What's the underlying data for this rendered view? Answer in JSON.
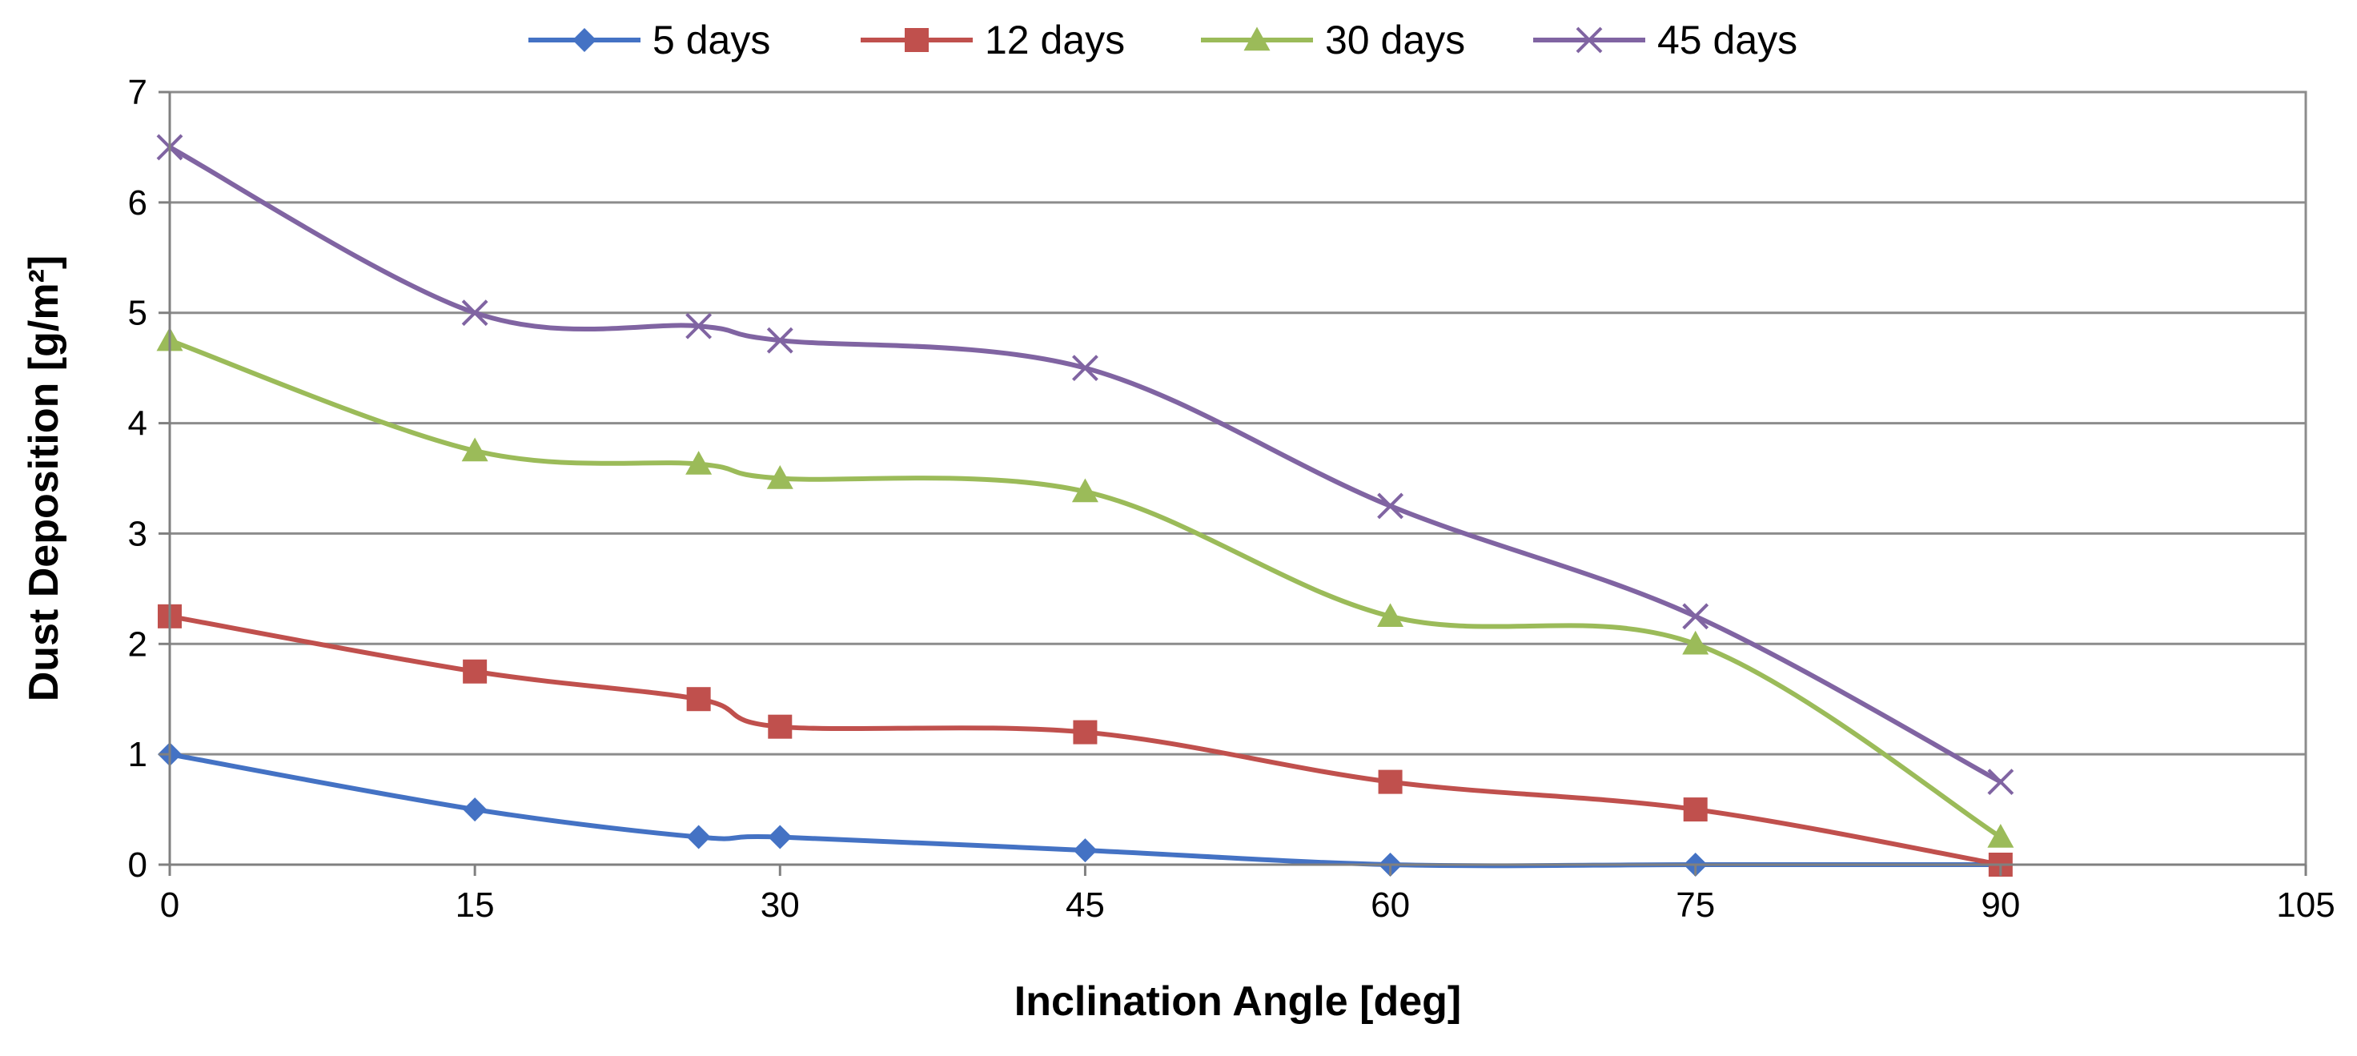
{
  "chart_data": {
    "type": "line",
    "title": "",
    "xlabel": "Inclination Angle [deg]",
    "ylabel": "Dust Deposition [g/m²]",
    "xlim": [
      0,
      105
    ],
    "ylim": [
      0,
      7
    ],
    "xticks": [
      0,
      15,
      30,
      45,
      60,
      75,
      90,
      105
    ],
    "yticks": [
      0,
      1,
      2,
      3,
      4,
      5,
      6,
      7
    ],
    "grid": "horizontal",
    "legend_position": "top",
    "x": [
      0,
      15,
      26,
      30,
      45,
      60,
      75,
      90
    ],
    "series": [
      {
        "name": "5 days",
        "color": "#4472C4",
        "marker": "diamond",
        "values": [
          1.0,
          0.5,
          0.25,
          0.25,
          0.13,
          0.0,
          0.0,
          0.0
        ]
      },
      {
        "name": "12 days",
        "color": "#C0504D",
        "marker": "square",
        "values": [
          2.25,
          1.75,
          1.5,
          1.25,
          1.2,
          0.75,
          0.5,
          0.0
        ]
      },
      {
        "name": "30 days",
        "color": "#9BBB59",
        "marker": "triangle",
        "values": [
          4.75,
          3.75,
          3.63,
          3.5,
          3.38,
          2.25,
          2.0,
          0.25
        ]
      },
      {
        "name": "45 days",
        "color": "#8064A2",
        "marker": "x",
        "values": [
          6.5,
          5.0,
          4.88,
          4.75,
          4.5,
          3.25,
          2.25,
          0.75
        ]
      }
    ]
  }
}
